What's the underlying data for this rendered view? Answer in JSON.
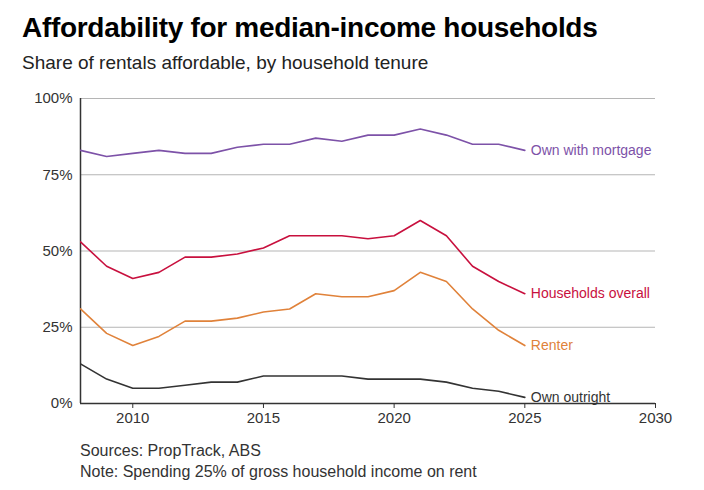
{
  "chart_data": {
    "type": "line",
    "title": "Affordability for median-income households",
    "subtitle": "Share of rentals affordable, by household tenure",
    "caption": [
      "Sources: PropTrack, ABS",
      "Note: Spending 25% of gross household income on rent"
    ],
    "x": [
      2008,
      2009,
      2010,
      2011,
      2012,
      2013,
      2014,
      2015,
      2016,
      2017,
      2018,
      2019,
      2020,
      2021,
      2022,
      2023,
      2024,
      2025
    ],
    "series": [
      {
        "name": "Own with mortgage",
        "color": "#7d52a8",
        "values": [
          83,
          81,
          82,
          83,
          82,
          82,
          84,
          85,
          85,
          87,
          86,
          88,
          88,
          90,
          88,
          85,
          85,
          83
        ]
      },
      {
        "name": "Households overall",
        "color": "#c8103e",
        "values": [
          53,
          45,
          41,
          43,
          48,
          48,
          49,
          51,
          55,
          55,
          55,
          54,
          55,
          60,
          55,
          45,
          40,
          36
        ]
      },
      {
        "name": "Renter",
        "color": "#e0823a",
        "values": [
          31,
          23,
          19,
          22,
          27,
          27,
          28,
          30,
          31,
          36,
          35,
          35,
          37,
          43,
          40,
          31,
          24,
          19
        ]
      },
      {
        "name": "Own outright",
        "color": "#333333",
        "values": [
          13,
          8,
          5,
          5,
          6,
          7,
          7,
          9,
          9,
          9,
          9,
          8,
          8,
          8,
          7,
          5,
          4,
          2
        ]
      }
    ],
    "xlim": [
      2008,
      2030
    ],
    "xticks": [
      2010,
      2015,
      2020,
      2025,
      2030
    ],
    "ylim": [
      0,
      100
    ],
    "yticks": [
      {
        "value": 0,
        "label": "0%"
      },
      {
        "value": 25,
        "label": "25%"
      },
      {
        "value": 50,
        "label": "50%"
      },
      {
        "value": 75,
        "label": "75%"
      },
      {
        "value": 100,
        "label": "100%"
      }
    ],
    "grid": true
  }
}
